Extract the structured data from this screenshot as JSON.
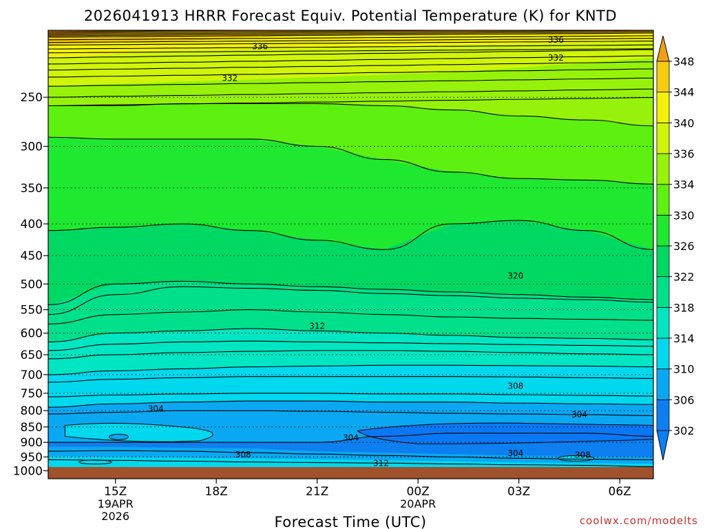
{
  "chart_data": {
    "type": "contour",
    "title": "2026041913 HRRR Forecast Equiv. Potential Temperature (K) for KNTD",
    "xlabel": "Forecast Time (UTC)",
    "ylabel": "",
    "credit": "coolwx.com/modelts",
    "y_axis": {
      "scale": "log",
      "ylim": [
        1030,
        195
      ],
      "ticks": [
        "250",
        "300",
        "350",
        "400",
        "450",
        "500",
        "550",
        "600",
        "650",
        "700",
        "750",
        "800",
        "850",
        "900",
        "950",
        "1000"
      ]
    },
    "x_axis": {
      "unit": "hours after 2026-04-19 13Z",
      "xlim": [
        0,
        18
      ],
      "ticks": [
        {
          "hour": 2,
          "label": "15Z",
          "sub1": "19APR",
          "sub2": "2026"
        },
        {
          "hour": 5,
          "label": "18Z",
          "sub1": "",
          "sub2": ""
        },
        {
          "hour": 8,
          "label": "21Z",
          "sub1": "",
          "sub2": ""
        },
        {
          "hour": 11,
          "label": "00Z",
          "sub1": "20APR",
          "sub2": ""
        },
        {
          "hour": 14,
          "label": "03Z",
          "sub1": "",
          "sub2": ""
        },
        {
          "hour": 17,
          "label": "06Z",
          "sub1": "",
          "sub2": ""
        }
      ]
    },
    "colorbar": {
      "levels": [
        "302",
        "306",
        "310",
        "314",
        "318",
        "322",
        "326",
        "330",
        "334",
        "336",
        "340",
        "344",
        "348"
      ],
      "colors": [
        "#0d7ff0",
        "#0aa8f2",
        "#00d8ee",
        "#00e6c2",
        "#00e08a",
        "#00d864",
        "#1ee830",
        "#5ef010",
        "#96f20a",
        "#d0f50a",
        "#f5f00a",
        "#f5cc10",
        "#f0a018"
      ],
      "extend": "both"
    },
    "contour_labels": [
      {
        "text": "336",
        "hour": 6.3,
        "p": 207
      },
      {
        "text": "336",
        "hour": 15.1,
        "p": 202
      },
      {
        "text": "332",
        "hour": 5.4,
        "p": 233
      },
      {
        "text": "332",
        "hour": 15.1,
        "p": 216
      },
      {
        "text": "320",
        "hour": 13.9,
        "p": 485
      },
      {
        "text": "312",
        "hour": 8.0,
        "p": 585
      },
      {
        "text": "308",
        "hour": 13.9,
        "p": 730
      },
      {
        "text": "304",
        "hour": 3.2,
        "p": 795
      },
      {
        "text": "304",
        "hour": 15.8,
        "p": 812
      },
      {
        "text": "304",
        "hour": 9.0,
        "p": 885
      },
      {
        "text": "308",
        "hour": 5.8,
        "p": 942
      },
      {
        "text": "312",
        "hour": 9.9,
        "p": 973
      },
      {
        "text": "304",
        "hour": 13.9,
        "p": 937
      },
      {
        "text": "308",
        "hour": 15.9,
        "p": 943
      }
    ]
  }
}
